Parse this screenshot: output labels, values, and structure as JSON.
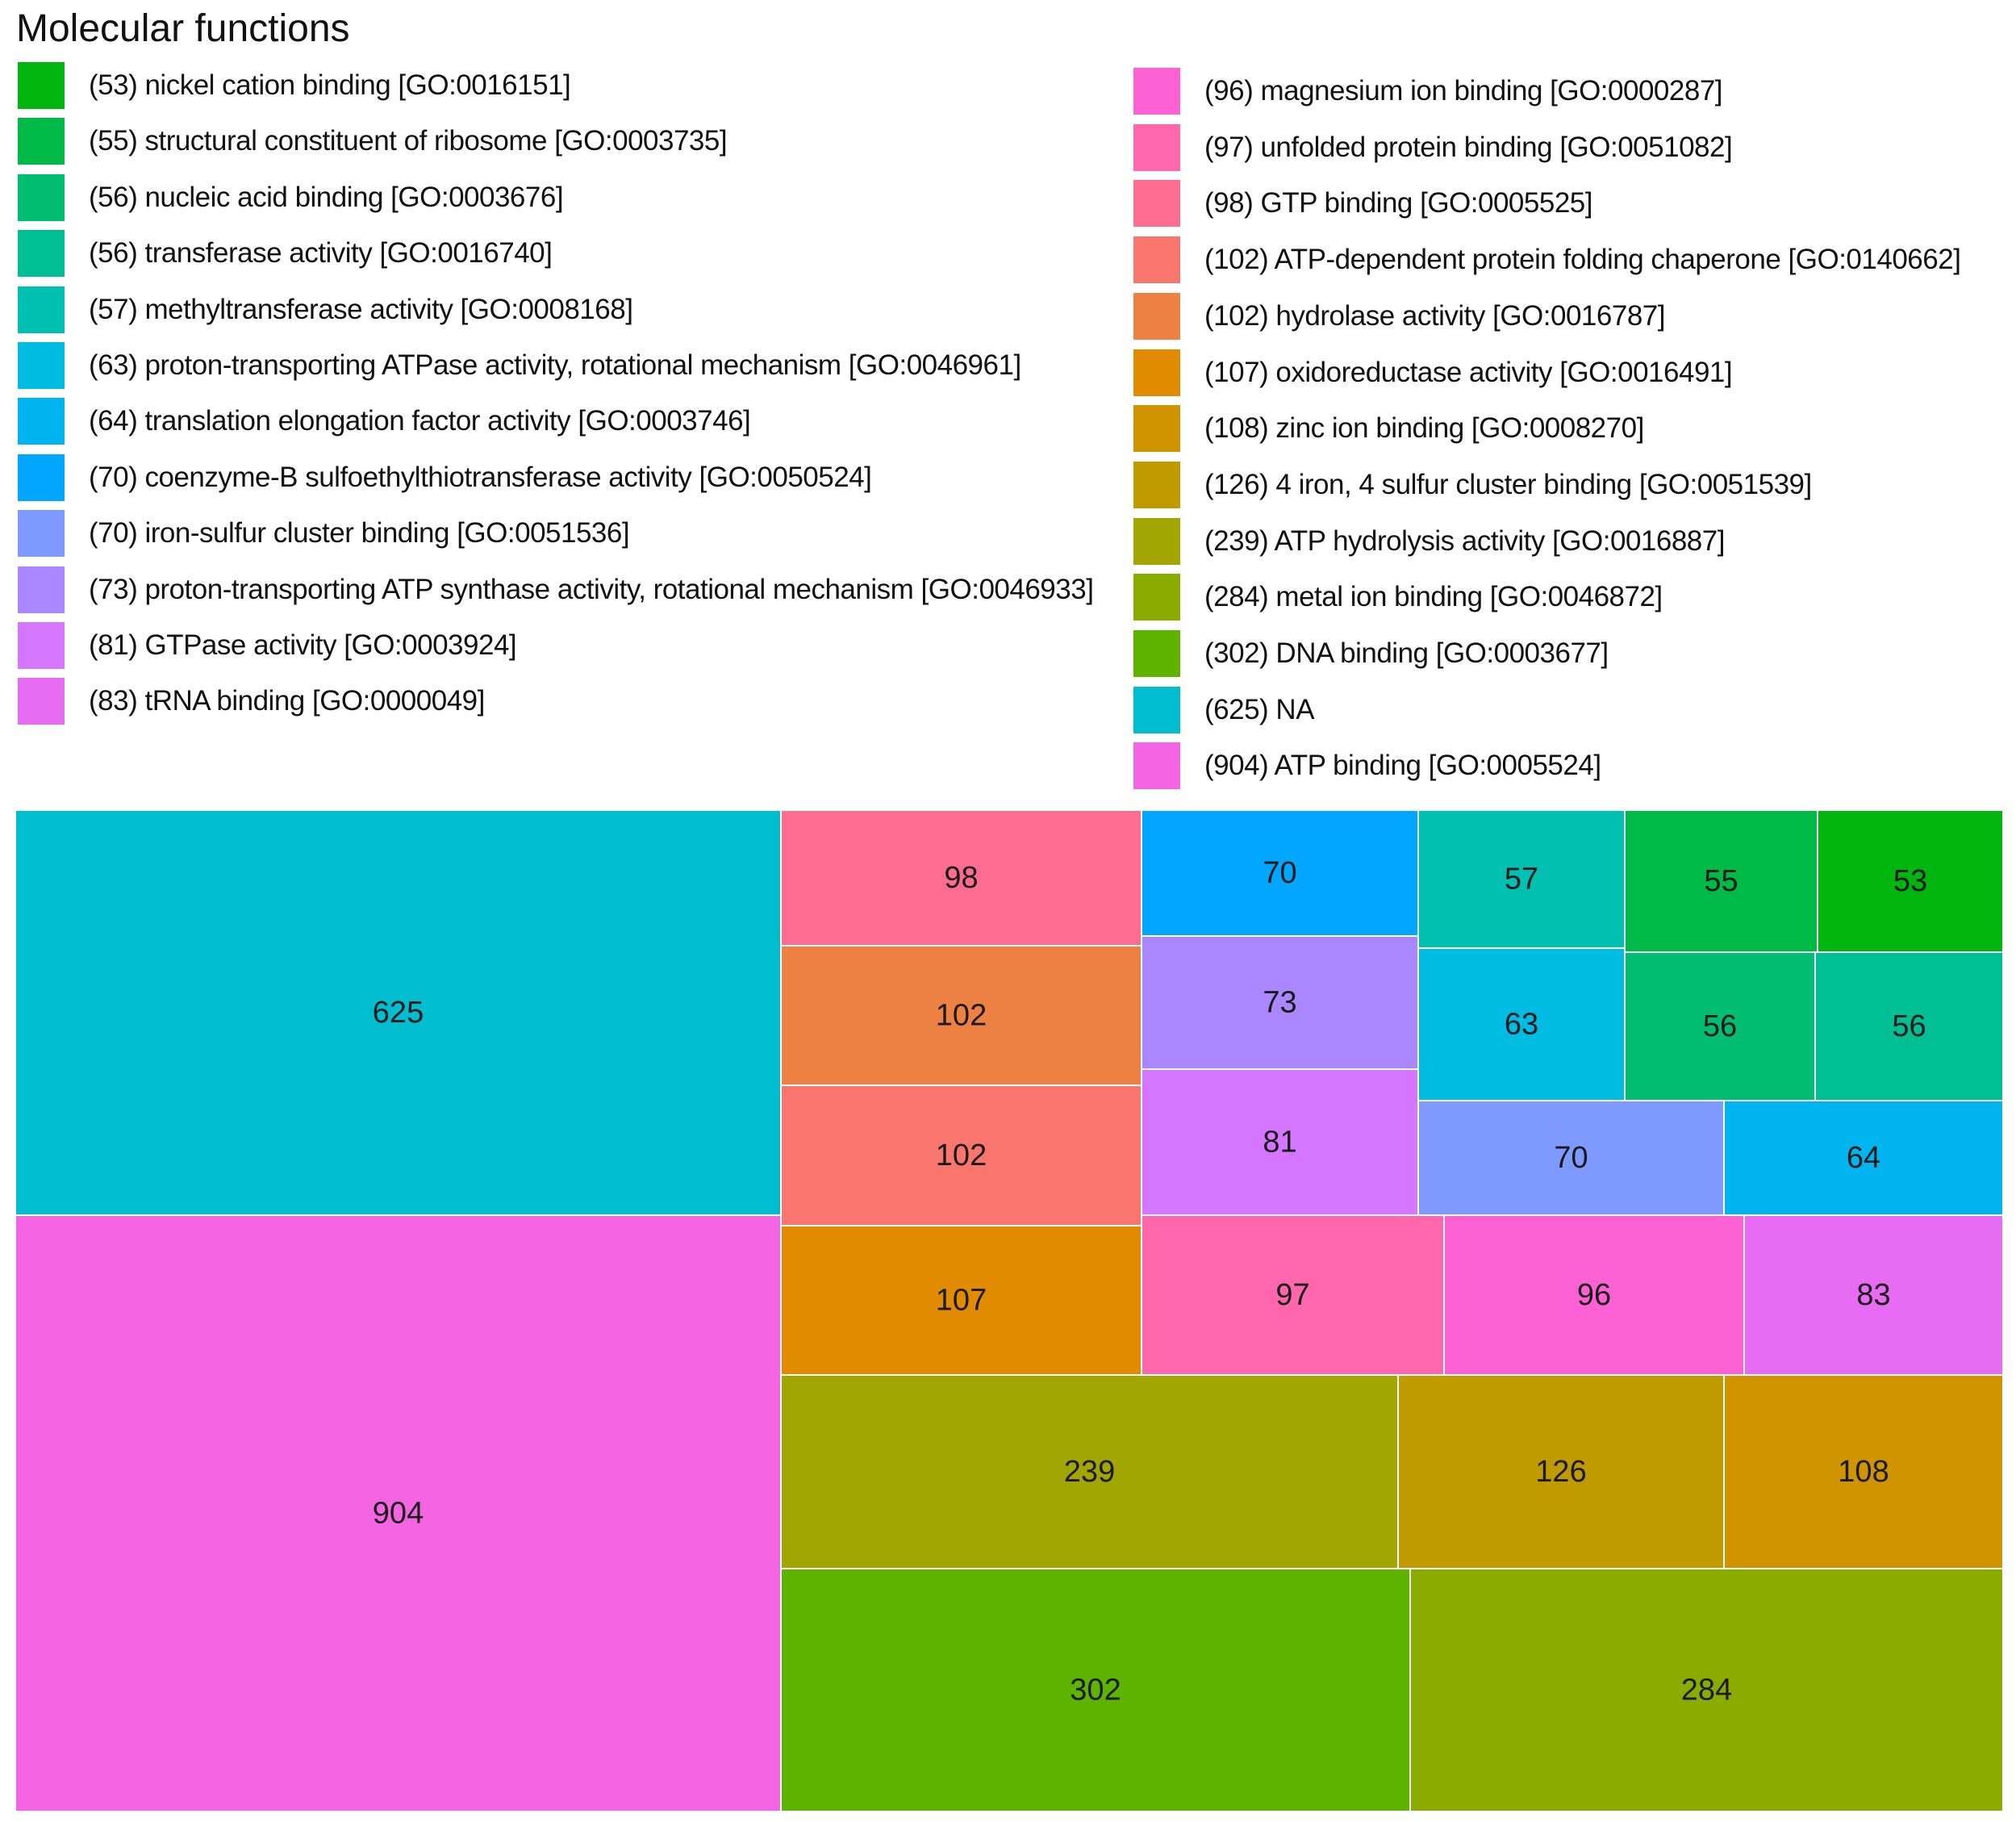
{
  "title": "Molecular functions",
  "chart_data": {
    "type": "treemap",
    "title": "Molecular functions",
    "legend": [
      {
        "label": "(53) nickel cation binding [GO:0016151]",
        "color": "#00B50E"
      },
      {
        "label": "(55) structural constituent of ribosome [GO:0003735]",
        "color": "#00BA47"
      },
      {
        "label": "(56) nucleic acid binding [GO:0003676]",
        "color": "#00BD71"
      },
      {
        "label": "(56) transferase activity [GO:0016740]",
        "color": "#00BF94"
      },
      {
        "label": "(57) methyltransferase activity [GO:0008168]",
        "color": "#00C0B1"
      },
      {
        "label": "(63) proton-transporting ATPase activity, rotational mechanism [GO:0046961]",
        "color": "#00BCE3"
      },
      {
        "label": "(64) translation elongation factor activity [GO:0003746]",
        "color": "#00B4F0"
      },
      {
        "label": "(70) coenzyme-B sulfoethylthiotransferase activity [GO:0050524]",
        "color": "#00A6FF"
      },
      {
        "label": "(70) iron-sulfur cluster binding [GO:0051536]",
        "color": "#7E99FF"
      },
      {
        "label": "(73) proton-transporting ATP synthase activity, rotational mechanism [GO:0046933]",
        "color": "#AB87FF"
      },
      {
        "label": "(81) GTPase activity [GO:0003924]",
        "color": "#D476FF"
      },
      {
        "label": "(83) tRNA binding [GO:0000049]",
        "color": "#E76BF3"
      },
      {
        "label": "(96) magnesium ion binding [GO:0000287]",
        "color": "#FD61D3"
      },
      {
        "label": "(97) unfolded protein binding [GO:0051082]",
        "color": "#FF67AC"
      },
      {
        "label": "(98) GTP binding [GO:0005525]",
        "color": "#FF6C92"
      },
      {
        "label": "(102) ATP-dependent protein folding chaperone [GO:0140662]",
        "color": "#F8766D"
      },
      {
        "label": "(102) hydrolase activity [GO:0016787]",
        "color": "#EC8143"
      },
      {
        "label": "(107) oxidoreductase activity [GO:0016491]",
        "color": "#E08B00"
      },
      {
        "label": "(108) zinc ion binding [GO:0008270]",
        "color": "#CF9400"
      },
      {
        "label": "(126) 4 iron, 4 sulfur cluster binding [GO:0051539]",
        "color": "#C09B00"
      },
      {
        "label": "(239) ATP hydrolysis activity [GO:0016887]",
        "color": "#A3A500"
      },
      {
        "label": "(284) metal ion binding [GO:0046872]",
        "color": "#8CAB00"
      },
      {
        "label": "(302) DNA binding [GO:0003677]",
        "color": "#5EB300"
      },
      {
        "label": "(625) NA",
        "color": "#00BDD0"
      },
      {
        "label": "(904) ATP binding [GO:0005524]",
        "color": "#F564E3"
      }
    ],
    "cells": [
      {
        "value": 625,
        "term": "NA",
        "color": "#00BDD0"
      },
      {
        "value": 904,
        "term": "ATP binding [GO:0005524]",
        "color": "#F564E3"
      },
      {
        "value": 98,
        "term": "GTP binding [GO:0005525]",
        "color": "#FF6C92"
      },
      {
        "value": 102,
        "term": "hydrolase activity [GO:0016787]",
        "color": "#EC8143"
      },
      {
        "value": 102,
        "term": "ATP-dependent protein folding chaperone [GO:0140662]",
        "color": "#F8766D"
      },
      {
        "value": 107,
        "term": "oxidoreductase activity [GO:0016491]",
        "color": "#E08B00"
      },
      {
        "value": 70,
        "term": "coenzyme-B sulfoethylthiotransferase activity [GO:0050524]",
        "color": "#00A6FF"
      },
      {
        "value": 73,
        "term": "proton-transporting ATP synthase activity, rotational mechanism [GO:0046933]",
        "color": "#AB87FF"
      },
      {
        "value": 81,
        "term": "GTPase activity [GO:0003924]",
        "color": "#D476FF"
      },
      {
        "value": 57,
        "term": "methyltransferase activity [GO:0008168]",
        "color": "#00C0B1"
      },
      {
        "value": 55,
        "term": "structural constituent of ribosome [GO:0003735]",
        "color": "#00BA47"
      },
      {
        "value": 53,
        "term": "nickel cation binding [GO:0016151]",
        "color": "#00B50E"
      },
      {
        "value": 63,
        "term": "proton-transporting ATPase activity, rotational mechanism [GO:0046961]",
        "color": "#00BCE3"
      },
      {
        "value": 56,
        "term": "nucleic acid binding [GO:0003676]",
        "color": "#00BD71"
      },
      {
        "value": 56,
        "term": "transferase activity [GO:0016740]",
        "color": "#00BF94"
      },
      {
        "value": 70,
        "term": "iron-sulfur cluster binding [GO:0051536]",
        "color": "#7E99FF"
      },
      {
        "value": 64,
        "term": "translation elongation factor activity [GO:0003746]",
        "color": "#00B4F0"
      },
      {
        "value": 97,
        "term": "unfolded protein binding [GO:0051082]",
        "color": "#FF67AC"
      },
      {
        "value": 96,
        "term": "magnesium ion binding [GO:0000287]",
        "color": "#FD61D3"
      },
      {
        "value": 83,
        "term": "tRNA binding [GO:0000049]",
        "color": "#E76BF3"
      },
      {
        "value": 239,
        "term": "ATP hydrolysis activity [GO:0016887]",
        "color": "#A3A500"
      },
      {
        "value": 126,
        "term": "4 iron, 4 sulfur cluster binding [GO:0051539]",
        "color": "#C09B00"
      },
      {
        "value": 108,
        "term": "zinc ion binding [GO:0008270]",
        "color": "#CF9400"
      },
      {
        "value": 302,
        "term": "DNA binding [GO:0003677]",
        "color": "#5EB300"
      },
      {
        "value": 284,
        "term": "metal ion binding [GO:0046872]",
        "color": "#8CAB00"
      }
    ]
  }
}
